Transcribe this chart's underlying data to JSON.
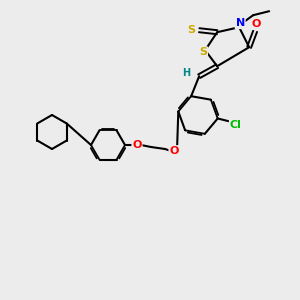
{
  "bg_color": "#ececec",
  "bond_color": "#000000",
  "atom_colors": {
    "O": "#ff0000",
    "N": "#0000ff",
    "S_ring": "#ccaa00",
    "S_thione": "#ccaa00",
    "Cl": "#00bb00",
    "H": "#008888",
    "C": "#000000"
  },
  "figsize": [
    3.0,
    3.0
  ],
  "dpi": 100
}
